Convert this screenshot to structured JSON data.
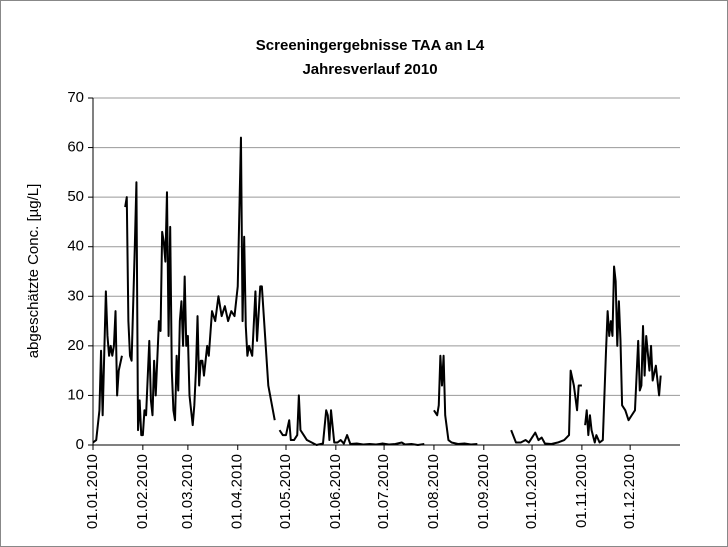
{
  "chart_data": {
    "type": "line",
    "title": "Screeningergebnisse TAA an L4",
    "subtitle": "Jahresverlauf 2010",
    "y_label": "abgeschätzte Conc. [µg/L]",
    "color": "#000000",
    "grid": true,
    "ylim": [
      0,
      70
    ],
    "yticks": [
      0,
      10,
      20,
      30,
      40,
      50,
      60,
      70
    ],
    "xlim": [
      "2010-01-01",
      "2011-01-01"
    ],
    "xticks": [
      {
        "value": "2010-01-01",
        "label": "01.01.2010"
      },
      {
        "value": "2010-02-01",
        "label": "01.02.2010"
      },
      {
        "value": "2010-03-01",
        "label": "01.03.2010"
      },
      {
        "value": "2010-04-01",
        "label": "01.04.2010"
      },
      {
        "value": "2010-05-01",
        "label": "01.05.2010"
      },
      {
        "value": "2010-06-01",
        "label": "01.06.2010"
      },
      {
        "value": "2010-07-01",
        "label": "01.07.2010"
      },
      {
        "value": "2010-08-01",
        "label": "01.08.2010"
      },
      {
        "value": "2010-09-01",
        "label": "01.09.2010"
      },
      {
        "value": "2010-10-01",
        "label": "01.10.2010"
      },
      {
        "value": "2010-11-01",
        "label": "01.11.2010"
      },
      {
        "value": "2010-12-01",
        "label": "01.12.2010"
      }
    ],
    "x": [
      "2010-01-01",
      "2010-01-03",
      "2010-01-05",
      "2010-01-06",
      "2010-01-07",
      "2010-01-09",
      "2010-01-10",
      "2010-01-11",
      "2010-01-12",
      "2010-01-13",
      "2010-01-14",
      "2010-01-15",
      "2010-01-16",
      "2010-01-17",
      "2010-01-19",
      "2010-01-20",
      "2010-01-21",
      "2010-01-22",
      "2010-01-23",
      "2010-01-24",
      "2010-01-25",
      "2010-01-27",
      "2010-01-28",
      "2010-01-29",
      "2010-01-30",
      "2010-01-31",
      "2010-02-01",
      "2010-02-02",
      "2010-02-03",
      "2010-02-05",
      "2010-02-06",
      "2010-02-07",
      "2010-02-08",
      "2010-02-09",
      "2010-02-11",
      "2010-02-12",
      "2010-02-13",
      "2010-02-14",
      "2010-02-15",
      "2010-02-16",
      "2010-02-17",
      "2010-02-18",
      "2010-02-19",
      "2010-02-20",
      "2010-02-21",
      "2010-02-22",
      "2010-02-23",
      "2010-02-24",
      "2010-02-25",
      "2010-02-26",
      "2010-02-27",
      "2010-02-28",
      "2010-03-01",
      "2010-03-02",
      "2010-03-04",
      "2010-03-05",
      "2010-03-06",
      "2010-03-07",
      "2010-03-08",
      "2010-03-09",
      "2010-03-10",
      "2010-03-11",
      "2010-03-13",
      "2010-03-14",
      "2010-03-16",
      "2010-03-18",
      "2010-03-20",
      "2010-03-22",
      "2010-03-24",
      "2010-03-26",
      "2010-03-28",
      "2010-03-30",
      "2010-04-01",
      "2010-04-03",
      "2010-04-04",
      "2010-04-05",
      "2010-04-06",
      "2010-04-07",
      "2010-04-08",
      "2010-04-10",
      "2010-04-12",
      "2010-04-13",
      "2010-04-15",
      "2010-04-16",
      "2010-04-20",
      "2010-04-24",
      "2010-04-25",
      "2010-04-27",
      "2010-04-29",
      "2010-05-01",
      "2010-05-03",
      "2010-05-04",
      "2010-05-06",
      "2010-05-08",
      "2010-05-09",
      "2010-05-10",
      "2010-05-12",
      "2010-05-14",
      "2010-05-17",
      "2010-05-20",
      "2010-05-24",
      "2010-05-26",
      "2010-05-27",
      "2010-05-28",
      "2010-05-29",
      "2010-05-31",
      "2010-06-02",
      "2010-06-04",
      "2010-06-06",
      "2010-06-08",
      "2010-06-10",
      "2010-06-14",
      "2010-06-18",
      "2010-06-22",
      "2010-06-26",
      "2010-06-30",
      "2010-07-04",
      "2010-07-08",
      "2010-07-12",
      "2010-07-14",
      "2010-07-18",
      "2010-07-22",
      "2010-07-26",
      "2010-07-30",
      "2010-08-01",
      "2010-08-03",
      "2010-08-04",
      "2010-08-05",
      "2010-08-06",
      "2010-08-07",
      "2010-08-08",
      "2010-08-10",
      "2010-08-12",
      "2010-08-16",
      "2010-08-20",
      "2010-08-24",
      "2010-08-28",
      "2010-09-01",
      "2010-09-18",
      "2010-09-21",
      "2010-09-24",
      "2010-09-27",
      "2010-09-29",
      "2010-10-01",
      "2010-10-03",
      "2010-10-05",
      "2010-10-07",
      "2010-10-09",
      "2010-10-13",
      "2010-10-17",
      "2010-10-21",
      "2010-10-24",
      "2010-10-25",
      "2010-10-27",
      "2010-10-29",
      "2010-10-30",
      "2010-11-01",
      "2010-11-02",
      "2010-11-03",
      "2010-11-04",
      "2010-11-05",
      "2010-11-06",
      "2010-11-07",
      "2010-11-09",
      "2010-11-10",
      "2010-11-12",
      "2010-11-14",
      "2010-11-16",
      "2010-11-17",
      "2010-11-18",
      "2010-11-19",
      "2010-11-20",
      "2010-11-21",
      "2010-11-22",
      "2010-11-23",
      "2010-11-24",
      "2010-11-25",
      "2010-11-26",
      "2010-11-28",
      "2010-11-30",
      "2010-12-02",
      "2010-12-04",
      "2010-12-06",
      "2010-12-07",
      "2010-12-08",
      "2010-12-09",
      "2010-12-10",
      "2010-12-11",
      "2010-12-13",
      "2010-12-14",
      "2010-12-15",
      "2010-12-17",
      "2010-12-19",
      "2010-12-20"
    ],
    "values": [
      0.5,
      1,
      7,
      19,
      6,
      31,
      22,
      18,
      20,
      18,
      20,
      27,
      10,
      15,
      18,
      null,
      48,
      50,
      25,
      18,
      17,
      40,
      53,
      3,
      9,
      2,
      2,
      7,
      6,
      21,
      9,
      6,
      17,
      10,
      25,
      23,
      43,
      41,
      37,
      51,
      22,
      44,
      15,
      7,
      5,
      18,
      11,
      25,
      29,
      20,
      34,
      20,
      22,
      10,
      4,
      8,
      15,
      26,
      12,
      17,
      17,
      14,
      20,
      18,
      27,
      25,
      30,
      26,
      28,
      25,
      27,
      26,
      32,
      62,
      25,
      42,
      24,
      18,
      20,
      18,
      31,
      21,
      32,
      32,
      12,
      5,
      null,
      3,
      2,
      2,
      5,
      1,
      1,
      2,
      10,
      3,
      2,
      1,
      0.5,
      0,
      0.3,
      7,
      6,
      1,
      7,
      0.5,
      0.5,
      1,
      0.3,
      2,
      0.2,
      0.3,
      0.1,
      0.2,
      0.1,
      0.3,
      0.1,
      0.2,
      0.5,
      0.1,
      0.2,
      0,
      0.2,
      null,
      7,
      6,
      8,
      18,
      12,
      18,
      6,
      1,
      0.5,
      0.2,
      0.3,
      0.1,
      0.2,
      null,
      3,
      0.5,
      0.5,
      1,
      0.5,
      1.5,
      2.5,
      1,
      1.5,
      0.3,
      0.2,
      0.5,
      1,
      2,
      15,
      12,
      7,
      12,
      12,
      null,
      4,
      7,
      2,
      6,
      3,
      0.5,
      2,
      0.5,
      1,
      19,
      27,
      22,
      25,
      22,
      36,
      33,
      20,
      29,
      21,
      8,
      7,
      5,
      6,
      7,
      21,
      11,
      12,
      24,
      14,
      22,
      15,
      20,
      13,
      16,
      10,
      14
    ]
  }
}
